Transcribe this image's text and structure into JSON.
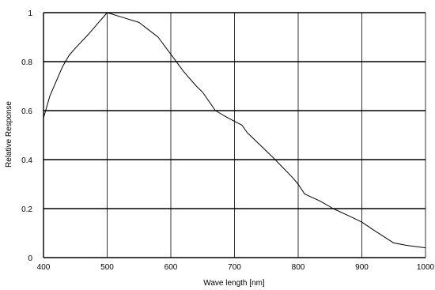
{
  "chart_data": {
    "type": "line",
    "title": "",
    "xlabel": "Wave length [nm]",
    "ylabel": "Relative Response",
    "xlim": [
      400,
      1000
    ],
    "ylim": [
      0,
      1
    ],
    "grid": true,
    "x_ticks": [
      400,
      500,
      600,
      700,
      800,
      900,
      1000
    ],
    "y_ticks": [
      0,
      0.2,
      0.4,
      0.6,
      0.8,
      1
    ],
    "x_tick_labels": [
      "400",
      "500",
      "600",
      "700",
      "800",
      "900",
      "1000"
    ],
    "y_tick_labels": [
      "0",
      "0.2",
      "0.4",
      "0.6",
      "0.8",
      "1"
    ],
    "series": [
      {
        "color": "#000000",
        "points": [
          [
            400,
            0.57
          ],
          [
            410,
            0.66
          ],
          [
            420,
            0.72
          ],
          [
            430,
            0.78
          ],
          [
            440,
            0.825
          ],
          [
            450,
            0.855
          ],
          [
            470,
            0.91
          ],
          [
            480,
            0.94
          ],
          [
            500,
            1.0
          ],
          [
            525,
            0.98
          ],
          [
            550,
            0.96
          ],
          [
            565,
            0.93
          ],
          [
            580,
            0.9
          ],
          [
            600,
            0.83
          ],
          [
            620,
            0.76
          ],
          [
            640,
            0.7
          ],
          [
            650,
            0.675
          ],
          [
            670,
            0.6
          ],
          [
            690,
            0.57
          ],
          [
            712,
            0.54
          ],
          [
            720,
            0.51
          ],
          [
            740,
            0.46
          ],
          [
            760,
            0.41
          ],
          [
            790,
            0.33
          ],
          [
            800,
            0.3
          ],
          [
            810,
            0.26
          ],
          [
            835,
            0.23
          ],
          [
            855,
            0.2
          ],
          [
            880,
            0.17
          ],
          [
            900,
            0.145
          ],
          [
            920,
            0.11
          ],
          [
            950,
            0.06
          ],
          [
            970,
            0.05
          ],
          [
            1000,
            0.04
          ]
        ]
      }
    ]
  }
}
